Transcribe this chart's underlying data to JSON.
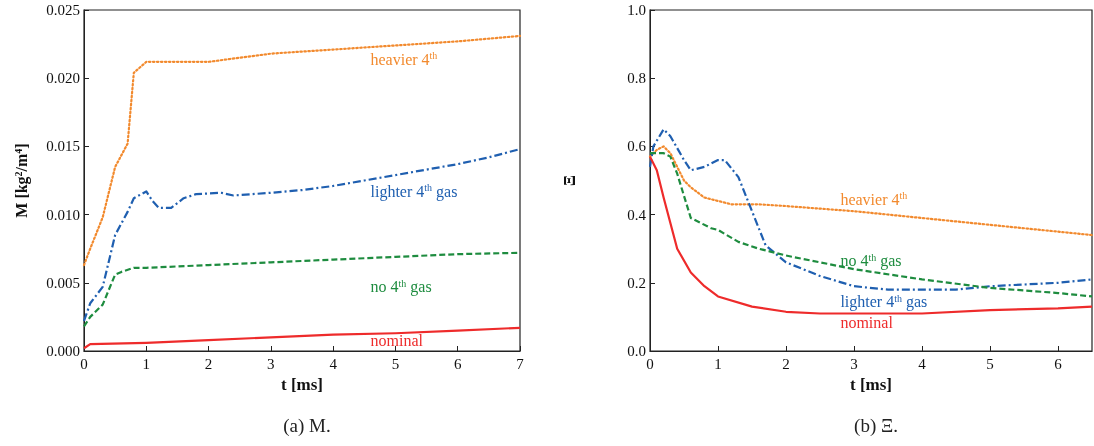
{
  "chart_data": [
    {
      "type": "line",
      "title": "(a) M.",
      "xlabel": "t [ms]",
      "ylabel": "M [kg$^{2}$/m$^{4}$]",
      "xlim": [
        0,
        7
      ],
      "xticks": [
        0,
        1,
        2,
        3,
        4,
        5,
        6,
        7
      ],
      "ylim": [
        0,
        0.025
      ],
      "yticks": [
        {
          "value": 0,
          "label": "0.000"
        },
        {
          "value": 0.005,
          "label": "0.005"
        },
        {
          "value": 0.01,
          "label": "0.010"
        },
        {
          "value": 0.015,
          "label": "0.015"
        },
        {
          "value": 0.02,
          "label": "0.020"
        },
        {
          "value": 0.025,
          "label": "0.025"
        }
      ],
      "grid": false,
      "legend": false,
      "marker": "none",
      "series": [
        {
          "name": "heavier 4$^{th}$",
          "color": "#f28a2e",
          "line_style": "dotted",
          "x": [
            0,
            0.1,
            0.3,
            0.5,
            0.7,
            0.8,
            1.0,
            1.2,
            2.0,
            3.0,
            4.0,
            5.0,
            6.0,
            7.0
          ],
          "values": [
            0.0063,
            0.0075,
            0.0098,
            0.0135,
            0.0152,
            0.0204,
            0.0212,
            0.0212,
            0.0212,
            0.0218,
            0.0221,
            0.0224,
            0.0227,
            0.0231
          ]
        },
        {
          "name": "lighter 4$^{th}$ gas",
          "color": "#1f5fb0",
          "line_style": "dashdot",
          "x": [
            0,
            0.1,
            0.3,
            0.5,
            0.7,
            0.8,
            1.0,
            1.1,
            1.2,
            1.4,
            1.6,
            1.8,
            2.2,
            2.4,
            3.0,
            3.5,
            4.0,
            4.5,
            5.0,
            5.5,
            6.0,
            6.5,
            7.0
          ],
          "values": [
            0.0022,
            0.0035,
            0.0047,
            0.0085,
            0.0102,
            0.0112,
            0.0117,
            0.011,
            0.0105,
            0.0105,
            0.0112,
            0.0115,
            0.0116,
            0.0114,
            0.0116,
            0.0118,
            0.0121,
            0.0125,
            0.0129,
            0.0133,
            0.0137,
            0.0142,
            0.0148
          ]
        },
        {
          "name": "no 4$^{th}$ gas",
          "color": "#1e8c3f",
          "line_style": "dashed",
          "x": [
            0,
            0.1,
            0.3,
            0.5,
            0.6,
            0.8,
            1.0,
            2.0,
            3.0,
            4.0,
            5.0,
            6.0,
            7.0
          ],
          "values": [
            0.0018,
            0.0025,
            0.0034,
            0.0056,
            0.0058,
            0.0061,
            0.0061,
            0.0063,
            0.0065,
            0.0067,
            0.0069,
            0.0071,
            0.0072
          ]
        },
        {
          "name": "nominal",
          "color": "#ee2b2b",
          "line_style": "solid",
          "x": [
            0,
            0.1,
            1.0,
            2.0,
            3.0,
            4.0,
            5.0,
            6.0,
            7.0
          ],
          "values": [
            0.0002,
            0.0005,
            0.0006,
            0.0008,
            0.001,
            0.0012,
            0.0013,
            0.0015,
            0.0017
          ]
        }
      ]
    },
    {
      "type": "line",
      "title": "(b) Ξ.",
      "xlabel": "t [ms]",
      "ylabel": "Ξ",
      "xlim": [
        0,
        6.5
      ],
      "xticks": [
        0,
        1,
        2,
        3,
        4,
        5,
        6
      ],
      "ylim": [
        0,
        1
      ],
      "yticks": [
        {
          "value": 0,
          "label": "0.0"
        },
        {
          "value": 0.2,
          "label": "0.2"
        },
        {
          "value": 0.4,
          "label": "0.4"
        },
        {
          "value": 0.6,
          "label": "0.6"
        },
        {
          "value": 0.8,
          "label": "0.8"
        },
        {
          "value": 1,
          "label": "1.0"
        }
      ],
      "grid": false,
      "legend": false,
      "marker": "none",
      "series": [
        {
          "name": "heavier 4$^{th}$",
          "color": "#f28a2e",
          "line_style": "dotted",
          "x": [
            0,
            0.1,
            0.2,
            0.3,
            0.5,
            0.6,
            0.8,
            1.0,
            1.2,
            1.6,
            2.0,
            3.0,
            4.0,
            5.0,
            6.0,
            6.5
          ],
          "values": [
            0.57,
            0.59,
            0.6,
            0.58,
            0.5,
            0.48,
            0.45,
            0.44,
            0.43,
            0.43,
            0.425,
            0.41,
            0.39,
            0.37,
            0.35,
            0.34
          ]
        },
        {
          "name": "lighter 4$^{th}$ gas",
          "color": "#1f5fb0",
          "line_style": "dashdot",
          "x": [
            0,
            0.05,
            0.2,
            0.3,
            0.5,
            0.6,
            0.8,
            1.0,
            1.1,
            1.3,
            1.5,
            1.7,
            2.0,
            2.5,
            3.0,
            3.5,
            4.0,
            4.5,
            5.0,
            5.5,
            6.0,
            6.5
          ],
          "values": [
            0.54,
            0.6,
            0.65,
            0.63,
            0.56,
            0.53,
            0.54,
            0.56,
            0.56,
            0.51,
            0.41,
            0.31,
            0.26,
            0.22,
            0.19,
            0.18,
            0.18,
            0.18,
            0.19,
            0.195,
            0.2,
            0.21
          ]
        },
        {
          "name": "no 4$^{th}$ gas",
          "color": "#1e8c3f",
          "line_style": "dashed",
          "x": [
            0,
            0.2,
            0.3,
            0.4,
            0.6,
            0.9,
            1.0,
            1.3,
            1.6,
            2.0,
            3.0,
            4.0,
            5.0,
            6.0,
            6.5
          ],
          "values": [
            0.58,
            0.58,
            0.57,
            0.52,
            0.39,
            0.36,
            0.355,
            0.32,
            0.3,
            0.28,
            0.24,
            0.21,
            0.185,
            0.17,
            0.16
          ]
        },
        {
          "name": "nominal",
          "color": "#ee2b2b",
          "line_style": "solid",
          "x": [
            0,
            0.1,
            0.2,
            0.4,
            0.6,
            0.8,
            1.0,
            1.5,
            2.0,
            2.5,
            3.0,
            4.0,
            5.0,
            6.0,
            6.5
          ],
          "values": [
            0.57,
            0.53,
            0.45,
            0.3,
            0.23,
            0.19,
            0.16,
            0.13,
            0.115,
            0.11,
            0.11,
            0.11,
            0.12,
            0.125,
            0.13
          ]
        }
      ]
    }
  ]
}
